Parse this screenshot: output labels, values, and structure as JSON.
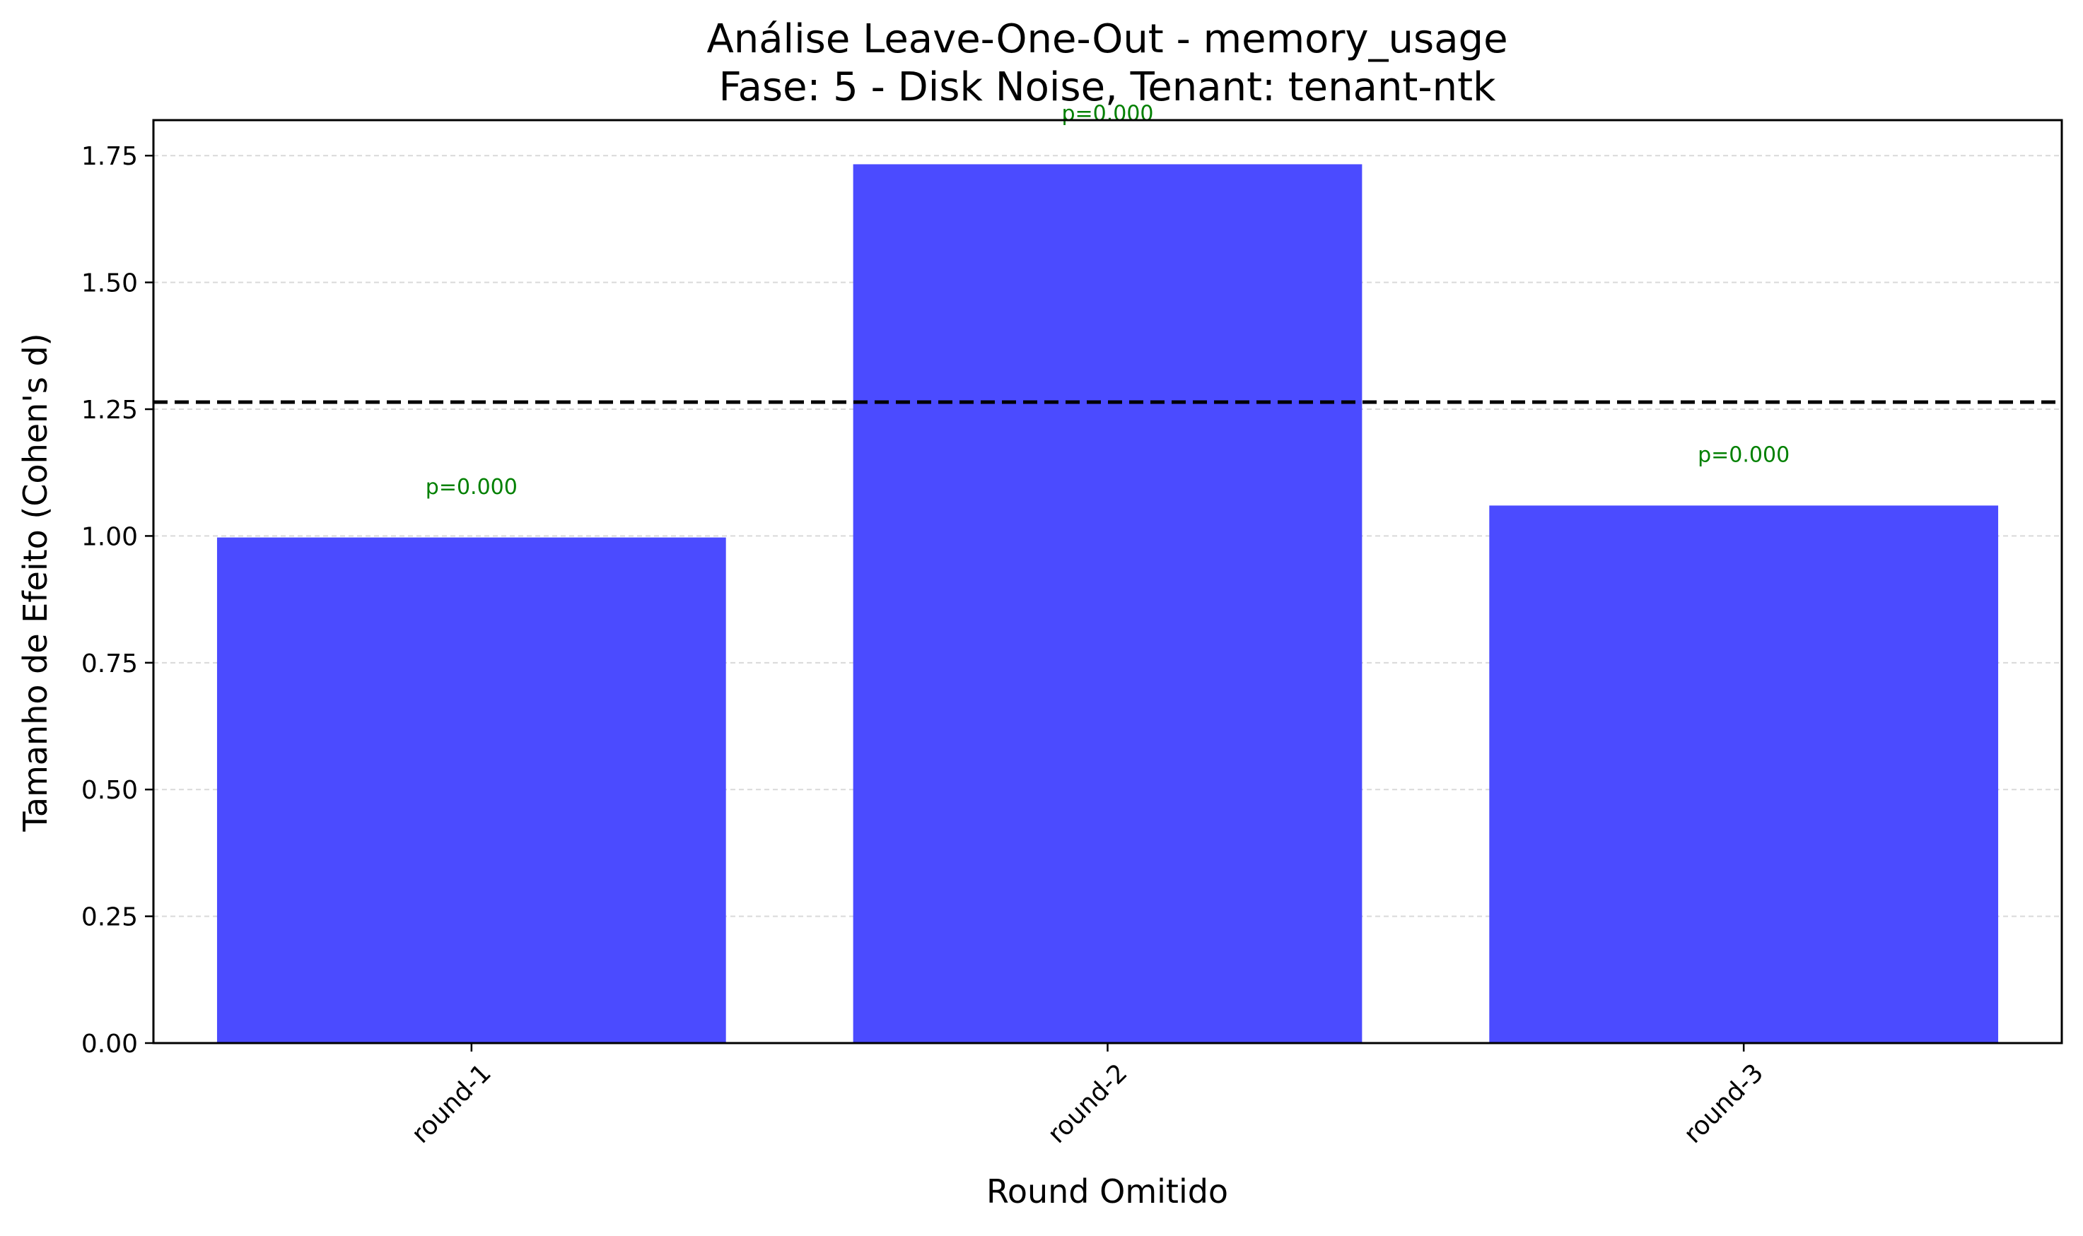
{
  "chart_data": {
    "type": "bar",
    "title": "Análise Leave-One-Out - memory_usage",
    "subtitle": "Fase: 5 - Disk Noise, Tenant: tenant-ntk",
    "xlabel": "Round Omitido",
    "ylabel": "Tamanho de Efeito (Cohen's d)",
    "categories": [
      "round-1",
      "round-2",
      "round-3"
    ],
    "values": [
      0.997,
      1.733,
      1.06
    ],
    "annotations": [
      "p=0.000",
      "p=0.000",
      "p=0.000"
    ],
    "ylim": [
      0,
      1.82
    ],
    "yticks": [
      "0.00",
      "0.25",
      "0.50",
      "0.75",
      "1.00",
      "1.25",
      "1.50",
      "1.75"
    ],
    "reference_line": 1.264,
    "grid": "y-dashed",
    "colors": {
      "bar": "#4b4bff",
      "annotation": "#008000",
      "reference_line": "#000000",
      "grid": "#d9d9d9"
    }
  }
}
